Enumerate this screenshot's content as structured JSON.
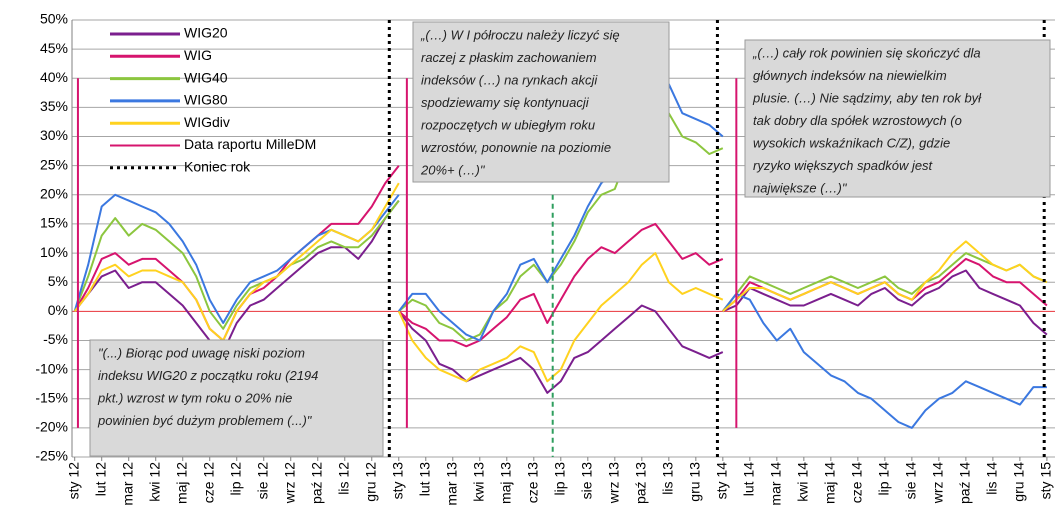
{
  "chart_data": {
    "type": "line",
    "x": [
      0,
      0.5,
      1,
      1.5,
      2,
      2.5,
      3,
      3.5,
      4,
      4.5,
      5,
      5.5,
      6,
      6.5,
      7,
      7.5,
      8,
      8.5,
      9,
      9.5,
      10,
      10.5,
      11,
      11.5,
      12,
      12,
      12,
      12.5,
      13,
      13.5,
      14,
      14.5,
      15,
      15.5,
      16,
      16.5,
      17,
      17.5,
      18,
      18.5,
      19,
      19.5,
      20,
      20.5,
      21,
      21.5,
      22,
      22.5,
      23,
      23.5,
      24,
      24,
      24,
      24.5,
      25,
      25.5,
      26,
      26.5,
      27,
      27.5,
      28,
      28.5,
      29,
      29.5,
      30,
      30.5,
      31,
      31.5,
      32,
      32.5,
      33,
      33.5,
      34,
      34.5,
      35,
      35.5,
      36
    ],
    "series": [
      {
        "name": "WIG20",
        "color": "#7b1f8e",
        "values": [
          0,
          3,
          6,
          7,
          4,
          5,
          5,
          3,
          1,
          -2,
          -5,
          -7,
          -2,
          1,
          2,
          4,
          6,
          8,
          10,
          11,
          11,
          9,
          12,
          16,
          19,
          null,
          0,
          -3,
          -5,
          -9,
          -10,
          -12,
          -11,
          -10,
          -9,
          -8,
          -10,
          -14,
          -12,
          -8,
          -7,
          -5,
          -3,
          -1,
          1,
          0,
          -3,
          -6,
          -7,
          -8,
          -7,
          null,
          0,
          1,
          4,
          3,
          2,
          1,
          1,
          2,
          3,
          2,
          1,
          3,
          4,
          2,
          1,
          3,
          4,
          6,
          7,
          4,
          3,
          2,
          1,
          -2,
          -4
        ]
      },
      {
        "name": "WIG",
        "color": "#d6146e",
        "values": [
          0,
          4,
          9,
          10,
          8,
          9,
          9,
          7,
          5,
          2,
          -3,
          -5,
          0,
          3,
          4,
          6,
          9,
          11,
          13,
          15,
          15,
          15,
          18,
          22,
          25,
          null,
          0,
          -2,
          -3,
          -5,
          -5,
          -6,
          -5,
          -3,
          -1,
          2,
          3,
          -2,
          2,
          6,
          9,
          11,
          10,
          12,
          14,
          15,
          12,
          9,
          10,
          8,
          9,
          null,
          0,
          2,
          5,
          4,
          3,
          2,
          3,
          4,
          5,
          4,
          3,
          4,
          5,
          3,
          2,
          4,
          5,
          7,
          9,
          8,
          6,
          5,
          5,
          3,
          1
        ]
      },
      {
        "name": "WIG40",
        "color": "#8cc63f",
        "values": [
          0,
          6,
          13,
          16,
          13,
          15,
          14,
          12,
          10,
          6,
          0,
          -3,
          1,
          4,
          5,
          6,
          8,
          9,
          11,
          12,
          11,
          11,
          13,
          16,
          19,
          null,
          0,
          2,
          1,
          -2,
          -3,
          -5,
          -4,
          0,
          2,
          6,
          8,
          5,
          8,
          12,
          17,
          20,
          21,
          27,
          31,
          33,
          34,
          30,
          29,
          27,
          28,
          null,
          0,
          3,
          6,
          5,
          4,
          3,
          4,
          5,
          6,
          5,
          4,
          5,
          6,
          4,
          3,
          5,
          6,
          8,
          10,
          9,
          8,
          7,
          8,
          6,
          5
        ]
      },
      {
        "name": "WIG80",
        "color": "#3b78e0",
        "values": [
          0,
          8,
          18,
          20,
          19,
          18,
          17,
          15,
          12,
          8,
          2,
          -2,
          2,
          5,
          6,
          7,
          9,
          11,
          13,
          14,
          13,
          12,
          14,
          17,
          20,
          null,
          0,
          3,
          3,
          0,
          -2,
          -4,
          -5,
          0,
          3,
          8,
          9,
          5,
          9,
          13,
          18,
          22,
          24,
          30,
          35,
          38,
          39,
          34,
          33,
          32,
          30,
          null,
          0,
          3,
          2,
          -2,
          -5,
          -3,
          -7,
          -9,
          -11,
          -12,
          -14,
          -15,
          -17,
          -19,
          -20,
          -17,
          -15,
          -14,
          -12,
          -13,
          -14,
          -15,
          -16,
          -13,
          -13
        ]
      },
      {
        "name": "WIGdiv",
        "color": "#ffd21f",
        "values": [
          0,
          3,
          7,
          8,
          6,
          7,
          7,
          6,
          5,
          2,
          -3,
          -5,
          0,
          3,
          5,
          6,
          8,
          10,
          12,
          14,
          13,
          12,
          14,
          18,
          22,
          null,
          0,
          -5,
          -8,
          -10,
          -11,
          -12,
          -10,
          -9,
          -8,
          -6,
          -7,
          -12,
          -10,
          -5,
          -2,
          1,
          3,
          5,
          8,
          10,
          5,
          3,
          4,
          3,
          2,
          null,
          0,
          2,
          4,
          4,
          3,
          2,
          3,
          4,
          5,
          4,
          3,
          4,
          5,
          3,
          2,
          5,
          7,
          10,
          12,
          10,
          8,
          7,
          8,
          6,
          5
        ]
      }
    ],
    "markers": [
      {
        "name": "Data raportu MilleDM",
        "color": "#d6146e",
        "style": "solid",
        "x": [
          0.12,
          12.3,
          24.5
        ],
        "y_range": [
          -20,
          40
        ]
      },
      {
        "name": "Koniec rok",
        "color": "#000000",
        "style": "dotted",
        "x": [
          11.65,
          23.8,
          35.9
        ]
      },
      {
        "color": "#2e9e5e",
        "style": "dashed",
        "x": [
          17.7
        ],
        "y_range": [
          -25,
          20
        ]
      }
    ],
    "annotations": [
      {
        "lines": [
          "\"(...) Biorąc pod uwagę niski poziom",
          "indeksu WIG20 z początku roku (2194",
          "pkt.) wzrost w tym roku o 20% nie",
          "powinien być dużym problemem (...)\""
        ]
      },
      {
        "lines": [
          "„(…) W I półroczu należy liczyć się",
          "raczej z płaskim zachowaniem",
          "indeksów  (…) na rynkach akcji",
          "spodziewamy się kontynuacji",
          "rozpoczętych w ubiegłym roku",
          "wzrostów, ponownie na poziomie",
          "20%+ (…)\""
        ]
      },
      {
        "lines": [
          "„(…) cały rok powinien się skończyć dla",
          "głównych indeksów na niewielkim",
          "plusie. (…) Nie sądzimy, aby ten rok był",
          "tak dobry dla spółek wzrostowych (o",
          "wysokich wskaźnikach C/Z), gdzie",
          "ryzyko większych spadków jest",
          "największe (…)\""
        ]
      }
    ],
    "xlim": [
      -0.1,
      36.3
    ],
    "ylim": [
      -25,
      50
    ],
    "yticks": [
      {
        "value": -25,
        "label": "-25%"
      },
      {
        "value": -20,
        "label": "-20%"
      },
      {
        "value": -15,
        "label": "-15%"
      },
      {
        "value": -10,
        "label": "-10%"
      },
      {
        "value": -5,
        "label": "-5%"
      },
      {
        "value": 0,
        "label": "0%"
      },
      {
        "value": 5,
        "label": "5%"
      },
      {
        "value": 10,
        "label": "10%"
      },
      {
        "value": 15,
        "label": "15%"
      },
      {
        "value": 20,
        "label": "20%"
      },
      {
        "value": 25,
        "label": "25%"
      },
      {
        "value": 30,
        "label": "30%"
      },
      {
        "value": 35,
        "label": "35%"
      },
      {
        "value": 40,
        "label": "40%"
      },
      {
        "value": 45,
        "label": "45%"
      },
      {
        "value": 50,
        "label": "50%"
      }
    ],
    "xticks": [
      {
        "value": 0,
        "label": "sty 12"
      },
      {
        "value": 1,
        "label": "lut 12"
      },
      {
        "value": 2,
        "label": "mar 12"
      },
      {
        "value": 3,
        "label": "kwi 12"
      },
      {
        "value": 4,
        "label": "maj 12"
      },
      {
        "value": 5,
        "label": "cze 12"
      },
      {
        "value": 6,
        "label": "lip 12"
      },
      {
        "value": 7,
        "label": "sie 12"
      },
      {
        "value": 8,
        "label": "wrz 12"
      },
      {
        "value": 9,
        "label": "paź 12"
      },
      {
        "value": 10,
        "label": "lis 12"
      },
      {
        "value": 11,
        "label": "gru 12"
      },
      {
        "value": 12,
        "label": "sty 13"
      },
      {
        "value": 13,
        "label": "lut 13"
      },
      {
        "value": 14,
        "label": "mar 13"
      },
      {
        "value": 15,
        "label": "kwi 13"
      },
      {
        "value": 16,
        "label": "maj 13"
      },
      {
        "value": 17,
        "label": "cze 13"
      },
      {
        "value": 18,
        "label": "lip 13"
      },
      {
        "value": 19,
        "label": "sie 13"
      },
      {
        "value": 20,
        "label": "wrz 13"
      },
      {
        "value": 21,
        "label": "paź 13"
      },
      {
        "value": 22,
        "label": "lis 13"
      },
      {
        "value": 23,
        "label": "gru 13"
      },
      {
        "value": 24,
        "label": "sty 14"
      },
      {
        "value": 25,
        "label": "lut 14"
      },
      {
        "value": 26,
        "label": "mar 14"
      },
      {
        "value": 27,
        "label": "kwi 14"
      },
      {
        "value": 28,
        "label": "maj 14"
      },
      {
        "value": 29,
        "label": "cze 14"
      },
      {
        "value": 30,
        "label": "lip 14"
      },
      {
        "value": 31,
        "label": "sie 14"
      },
      {
        "value": 32,
        "label": "wrz 14"
      },
      {
        "value": 33,
        "label": "paź 14"
      },
      {
        "value": 34,
        "label": "lis 14"
      },
      {
        "value": 35,
        "label": "gru 14"
      },
      {
        "value": 36,
        "label": "sty 15"
      }
    ],
    "grid": true,
    "zero_line_color": "#e8333a"
  }
}
